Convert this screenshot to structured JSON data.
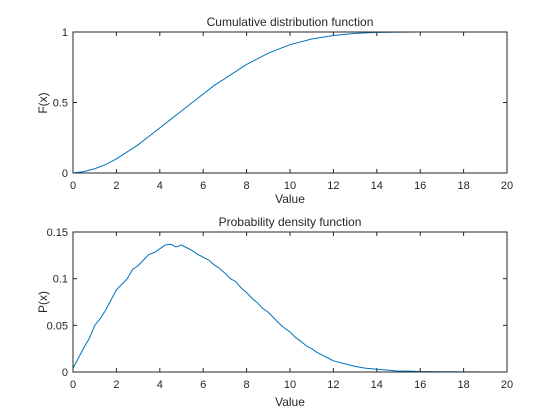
{
  "chart_data": [
    {
      "type": "line",
      "title": "Cumulative distribution function",
      "xlabel": "Value",
      "ylabel": "F(x)",
      "xlim": [
        0,
        20
      ],
      "ylim": [
        0,
        1
      ],
      "xticks": [
        "0",
        "2",
        "4",
        "6",
        "8",
        "10",
        "12",
        "14",
        "16",
        "18",
        "20"
      ],
      "yticks": [
        "0",
        "0.5",
        "1"
      ],
      "grid": false,
      "line_color": "#0072BD",
      "series": [
        {
          "x": [
            0,
            0.5,
            1,
            1.5,
            2,
            2.5,
            3,
            3.5,
            4,
            4.5,
            5,
            5.5,
            6,
            6.5,
            7,
            7.5,
            8,
            8.5,
            9,
            9.5,
            10,
            11,
            12,
            13,
            14,
            15,
            16,
            17,
            18,
            19,
            20
          ],
          "y": [
            0,
            0.01,
            0.03,
            0.06,
            0.1,
            0.15,
            0.2,
            0.26,
            0.32,
            0.38,
            0.44,
            0.5,
            0.56,
            0.62,
            0.67,
            0.72,
            0.77,
            0.81,
            0.85,
            0.88,
            0.91,
            0.95,
            0.975,
            0.99,
            0.997,
            0.999,
            1,
            1,
            1,
            1,
            1
          ]
        }
      ]
    },
    {
      "type": "line",
      "title": "Probability density function",
      "xlabel": "Value",
      "ylabel": "P(x)",
      "xlim": [
        0,
        20
      ],
      "ylim": [
        0,
        0.15
      ],
      "xticks": [
        "0",
        "2",
        "4",
        "6",
        "8",
        "10",
        "12",
        "14",
        "16",
        "18",
        "20"
      ],
      "yticks": [
        "0",
        "0.05",
        "0.1",
        "0.15"
      ],
      "grid": false,
      "line_color": "#0072BD",
      "series": [
        {
          "x": [
            0,
            0.25,
            0.5,
            0.75,
            1,
            1.25,
            1.5,
            1.75,
            2,
            2.25,
            2.5,
            2.75,
            3,
            3.25,
            3.5,
            3.75,
            4,
            4.25,
            4.5,
            4.75,
            5,
            5.25,
            5.5,
            5.75,
            6,
            6.25,
            6.5,
            6.75,
            7,
            7.25,
            7.5,
            7.75,
            8,
            8.25,
            8.5,
            8.75,
            9,
            9.25,
            9.5,
            9.75,
            10,
            10.25,
            10.5,
            10.75,
            11,
            11.25,
            11.5,
            11.75,
            12,
            12.5,
            13,
            13.5,
            14,
            14.5,
            15,
            15.5,
            16,
            16.5,
            17,
            17.5,
            18,
            18.5,
            19,
            19.5,
            20
          ],
          "y": [
            0.004,
            0.015,
            0.026,
            0.036,
            0.05,
            0.057,
            0.066,
            0.077,
            0.088,
            0.094,
            0.1,
            0.11,
            0.114,
            0.12,
            0.126,
            0.128,
            0.132,
            0.136,
            0.137,
            0.134,
            0.136,
            0.133,
            0.13,
            0.126,
            0.123,
            0.12,
            0.115,
            0.111,
            0.106,
            0.1,
            0.097,
            0.09,
            0.085,
            0.079,
            0.074,
            0.068,
            0.064,
            0.058,
            0.052,
            0.047,
            0.043,
            0.037,
            0.033,
            0.028,
            0.025,
            0.021,
            0.018,
            0.015,
            0.012,
            0.009,
            0.006,
            0.004,
            0.003,
            0.002,
            0.001,
            0.001,
            0.0005,
            0.0004,
            0.0003,
            0.0002,
            0.0001,
            0.0001,
            0,
            0,
            0
          ]
        }
      ]
    }
  ]
}
